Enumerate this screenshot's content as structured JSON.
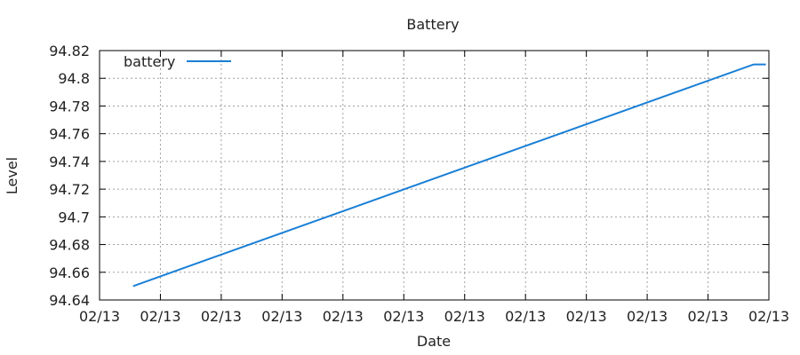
{
  "chart_data": {
    "type": "line",
    "title": "Battery",
    "xlabel": "Date",
    "ylabel": "Level",
    "x_tick_labels": [
      "02/13",
      "02/13",
      "02/13",
      "02/13",
      "02/13",
      "02/13",
      "02/13",
      "02/13",
      "02/13",
      "02/13",
      "02/13",
      "02/13"
    ],
    "y_tick_labels": [
      "94.64",
      "94.66",
      "94.68",
      "94.7",
      "94.72",
      "94.74",
      "94.76",
      "94.78",
      "94.8",
      "94.82"
    ],
    "ylim": [
      94.64,
      94.82
    ],
    "xlim": [
      0,
      11
    ],
    "grid": true,
    "legend_position": "top-left",
    "series": [
      {
        "name": "battery",
        "color": "#1a7fd6",
        "x": [
          0.55,
          10.75,
          10.95
        ],
        "y": [
          94.65,
          94.81,
          94.81
        ]
      }
    ]
  }
}
